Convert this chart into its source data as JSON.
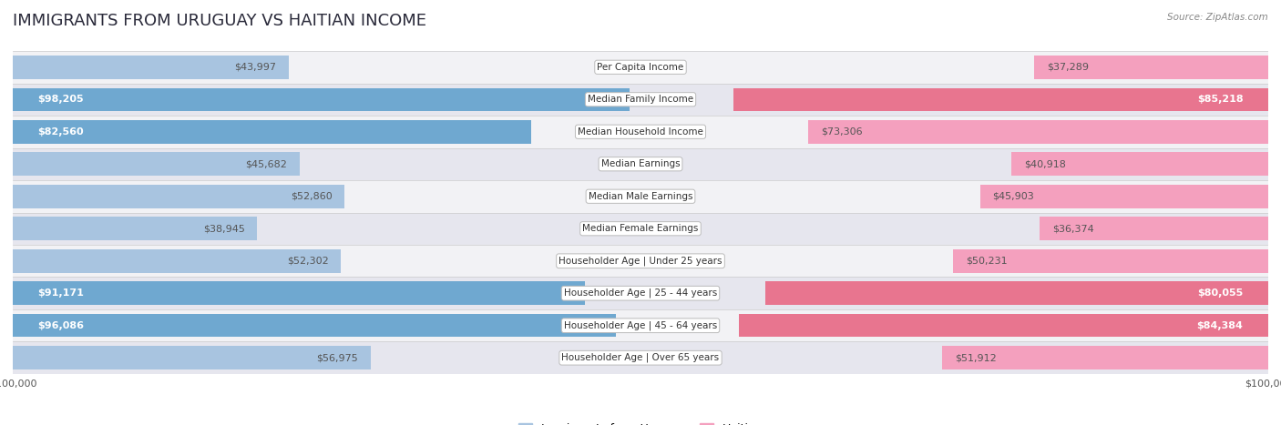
{
  "title": "IMMIGRANTS FROM URUGUAY VS HAITIAN INCOME",
  "source": "Source: ZipAtlas.com",
  "categories": [
    "Per Capita Income",
    "Median Family Income",
    "Median Household Income",
    "Median Earnings",
    "Median Male Earnings",
    "Median Female Earnings",
    "Householder Age | Under 25 years",
    "Householder Age | 25 - 44 years",
    "Householder Age | 45 - 64 years",
    "Householder Age | Over 65 years"
  ],
  "uruguay_values": [
    43997,
    98205,
    82560,
    45682,
    52860,
    38945,
    52302,
    91171,
    96086,
    56975
  ],
  "haitian_values": [
    37289,
    85218,
    73306,
    40918,
    45903,
    36374,
    50231,
    80055,
    84384,
    51912
  ],
  "uruguay_labels": [
    "$43,997",
    "$98,205",
    "$82,560",
    "$45,682",
    "$52,860",
    "$38,945",
    "$52,302",
    "$91,171",
    "$96,086",
    "$56,975"
  ],
  "haitian_labels": [
    "$37,289",
    "$85,218",
    "$73,306",
    "$40,918",
    "$45,903",
    "$36,374",
    "$50,231",
    "$80,055",
    "$84,384",
    "$51,912"
  ],
  "max_value": 100000,
  "uruguay_color_light": "#a8c4e0",
  "uruguay_color_dark": "#6fa8d0",
  "haitian_color_light": "#f4a0be",
  "haitian_color_dark": "#e8758f",
  "row_colors": [
    "#f5f5f5",
    "#e8e8ec",
    "#f5f5f5",
    "#e8e8ec",
    "#f5f5f5",
    "#e8e8ec",
    "#f5f5f5",
    "#e8e8ec",
    "#f5f5f5",
    "#e8e8ec"
  ],
  "title_fontsize": 13,
  "label_fontsize": 8,
  "category_fontsize": 7.5,
  "legend_fontsize": 9,
  "axis_label_fontsize": 8,
  "large_threshold": 75000
}
